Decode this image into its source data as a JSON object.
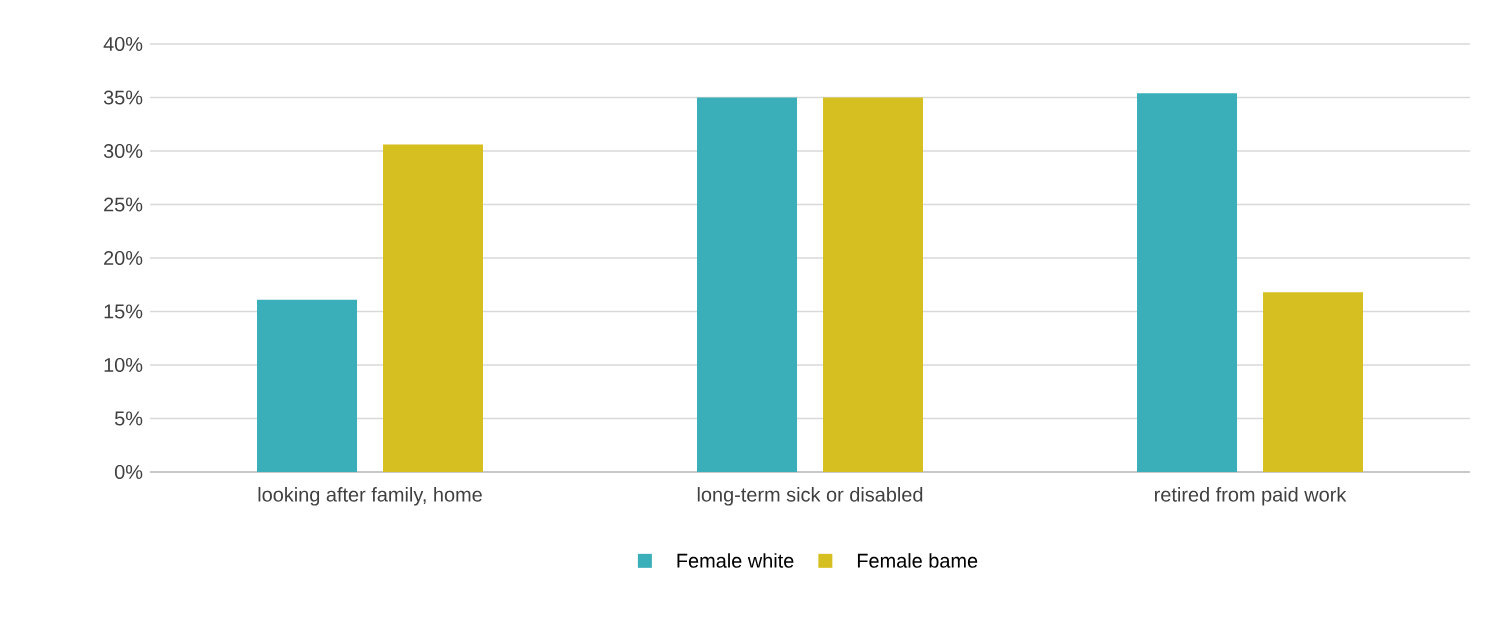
{
  "chart_data": {
    "type": "bar",
    "categories": [
      "looking after family, home",
      "long-term sick or disabled",
      "retired from paid work"
    ],
    "series": [
      {
        "name": "Female white",
        "color": "#3aafb9",
        "values": [
          16.1,
          35.0,
          35.4
        ]
      },
      {
        "name": "Female bame",
        "color": "#d6c021",
        "values": [
          30.6,
          35.0,
          16.8
        ]
      }
    ],
    "ylim": [
      0,
      40
    ],
    "yticks": [
      {
        "value": 0,
        "label": "0%"
      },
      {
        "value": 5,
        "label": "5%"
      },
      {
        "value": 10,
        "label": "10%"
      },
      {
        "value": 15,
        "label": "15%"
      },
      {
        "value": 20,
        "label": "20%"
      },
      {
        "value": 25,
        "label": "25%"
      },
      {
        "value": 30,
        "label": "30%"
      },
      {
        "value": 35,
        "label": "35%"
      },
      {
        "value": 40,
        "label": "40%"
      }
    ],
    "grid": "y",
    "legend": "bottom"
  }
}
